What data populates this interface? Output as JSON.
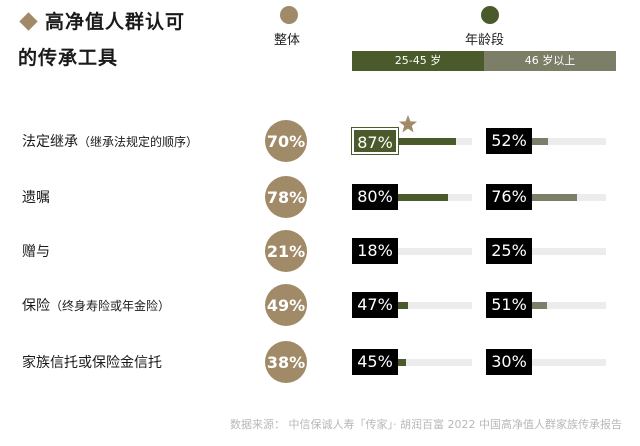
{
  "title_line1": "高净值人群认可",
  "title_line2": "的传承工具",
  "legend": {
    "overall_label": "整体",
    "age_label": "年龄段",
    "overall_color": "#a08a67",
    "age_color": "#4a5a2a"
  },
  "age_groups": [
    "25-45 岁",
    "46 岁以上"
  ],
  "colors": {
    "overall": "#a08a67",
    "age_young": "#4a5a2a",
    "age_old": "#7d7e68",
    "box_black": "#000000",
    "track": "#ececec"
  },
  "source": "数据来源： 中信保诚人寿「传家」· 胡润百富 2022 中国高净值人群家族传承报告",
  "chart_data": {
    "type": "bar",
    "categories": [
      {
        "label": "法定继承",
        "note": "（继承法规定的顺序）"
      },
      {
        "label": "遗嘱",
        "note": ""
      },
      {
        "label": "赠与",
        "note": ""
      },
      {
        "label": "保险",
        "note": "（终身寿险或年金险）"
      },
      {
        "label": "家族信托或保险金信托",
        "note": ""
      }
    ],
    "series": [
      {
        "name": "整体",
        "values": [
          70,
          78,
          21,
          49,
          38
        ],
        "labels": [
          "70%",
          "78%",
          "21%",
          "49%",
          "38%"
        ]
      },
      {
        "name": "25-45 岁",
        "values": [
          87,
          80,
          18,
          47,
          45
        ],
        "labels": [
          "87%",
          "80%",
          "18%",
          "47%",
          "45%"
        ]
      },
      {
        "name": "46 岁以上",
        "values": [
          52,
          76,
          25,
          51,
          30
        ],
        "labels": [
          "52%",
          "76%",
          "25%",
          "51%",
          "30%"
        ]
      }
    ],
    "highlight": {
      "series": "25-45 岁",
      "category": "法定继承",
      "mark": "star-icon"
    },
    "ylim": [
      0,
      100
    ],
    "grid": false
  }
}
